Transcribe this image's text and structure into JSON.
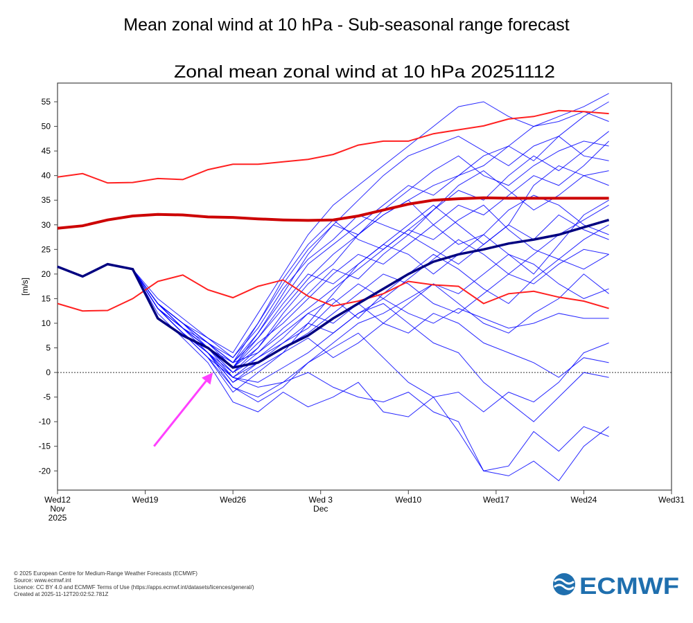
{
  "page_title": "Mean zonal wind at 10 hPa - Sub-seasonal range forecast",
  "footer": [
    "© 2025 European Centre for Medium-Range Weather Forecasts (ECMWF)",
    "Source: www.ecmwf.int",
    "Licence: CC BY 4.0 and ECMWF Terms of Use (https://apps.ecmwf.int/datasets/licences/general/)",
    "Created at 2025-11-12T20:02:52.781Z"
  ],
  "logo_text": "ECMWF",
  "colors": {
    "members": "#0000ff",
    "ensemble_mean": "#000080",
    "climate_bounds": "#ff2020",
    "climate_mean": "#cc0000",
    "arrow": "#ff40ff",
    "logo": "#1f6fae"
  },
  "chart_data": {
    "type": "line",
    "title": "Zonal mean zonal wind at 10 hPa 20251112",
    "ylabel": "[m/s]",
    "xlabel": "",
    "x_unit": "days from Wed 12 Nov 2025",
    "xlim": [
      0,
      49
    ],
    "ylim": [
      -23.9,
      58.8
    ],
    "yticks": [
      -20,
      -15,
      -10,
      -5,
      0,
      5,
      10,
      15,
      20,
      25,
      30,
      35,
      40,
      45,
      50,
      55
    ],
    "xticks": [
      {
        "day": 0,
        "label": [
          "Wed12",
          "Nov",
          "2025"
        ]
      },
      {
        "day": 7,
        "label": [
          "Wed19"
        ]
      },
      {
        "day": 14,
        "label": [
          "Wed26"
        ]
      },
      {
        "day": 21,
        "label": [
          "Wed 3",
          "Dec"
        ]
      },
      {
        "day": 28,
        "label": [
          "Wed10"
        ]
      },
      {
        "day": 35,
        "label": [
          "Wed17"
        ]
      },
      {
        "day": 42,
        "label": [
          "Wed24"
        ]
      },
      {
        "day": 49,
        "label": [
          "Wed31"
        ]
      }
    ],
    "zero_line": "dotted",
    "grid": false,
    "x": [
      0,
      2,
      4,
      6,
      8,
      10,
      12,
      14,
      16,
      18,
      20,
      22,
      24,
      26,
      28,
      30,
      32,
      34,
      36,
      38,
      40,
      42,
      44
    ],
    "climate_upper": [
      39.7,
      40.4,
      38.5,
      38.6,
      39.4,
      39.2,
      41.2,
      42.3,
      42.3,
      42.8,
      43.3,
      44.3,
      46.2,
      47.0,
      47.0,
      48.5,
      49.3,
      50.1,
      51.5,
      52.0,
      53.2,
      53.0,
      52.6
    ],
    "climate_mean": [
      29.3,
      29.8,
      31.0,
      31.8,
      32.1,
      32.0,
      31.6,
      31.5,
      31.2,
      31.0,
      30.9,
      31.0,
      31.8,
      33.0,
      34.2,
      35.0,
      35.3,
      35.5,
      35.4,
      35.4,
      35.4,
      35.4,
      35.4
    ],
    "climate_lower": [
      14.0,
      12.5,
      12.6,
      15.0,
      18.5,
      19.8,
      16.8,
      15.2,
      17.5,
      18.8,
      15.5,
      13.5,
      14.5,
      16.0,
      18.5,
      17.8,
      17.5,
      14.0,
      16.0,
      16.5,
      15.3,
      14.5,
      13.0
    ],
    "ensemble_mean": [
      21.5,
      19.5,
      22.0,
      21.0,
      11.0,
      7.5,
      5.0,
      1.0,
      2.0,
      5.0,
      7.5,
      11.0,
      14.0,
      17.0,
      20.0,
      22.5,
      24.0,
      25.0,
      26.2,
      27.0,
      28.0,
      29.5,
      31.0
    ],
    "members": [
      [
        21.5,
        19.5,
        22,
        21,
        14,
        9,
        5,
        1,
        5,
        12,
        18,
        22,
        28,
        32,
        35,
        38,
        40,
        42,
        46,
        50,
        52,
        54,
        56.7
      ],
      [
        21.5,
        19.5,
        22,
        21,
        13,
        8,
        3,
        -3,
        -5,
        -2,
        2,
        6,
        10,
        12,
        15,
        18,
        14,
        10,
        8,
        12,
        15,
        20,
        16
      ],
      [
        21.5,
        19.5,
        22,
        21,
        12,
        7,
        2,
        -6,
        -8,
        -4,
        -7,
        -5,
        -2,
        -8,
        -9,
        -5,
        -12,
        -20,
        -21,
        -18,
        -22,
        -15,
        -11
      ],
      [
        21.5,
        19.5,
        22,
        21,
        14,
        10,
        6,
        2,
        8,
        15,
        22,
        26,
        30,
        34,
        38,
        36,
        40,
        44,
        46,
        43,
        48,
        52,
        55
      ],
      [
        21.5,
        19.5,
        22,
        21,
        13,
        8,
        4,
        0,
        3,
        6,
        10,
        8,
        12,
        14,
        10,
        6,
        4,
        -2,
        -6,
        -10,
        -5,
        0,
        -1
      ],
      [
        21.5,
        19.5,
        22,
        21,
        15,
        11,
        7,
        3,
        10,
        18,
        25,
        30,
        28,
        32,
        35,
        30,
        26,
        28,
        33,
        36,
        34,
        30,
        28
      ],
      [
        21.5,
        19.5,
        22,
        21,
        13,
        9,
        5,
        -1,
        -3,
        -2,
        0,
        -3,
        -5,
        -6,
        -4,
        -8,
        -10,
        -20,
        -19,
        -12,
        -16,
        -11,
        -13
      ],
      [
        21.5,
        19.5,
        22,
        21,
        14,
        9,
        6,
        1,
        6,
        10,
        15,
        20,
        24,
        22,
        26,
        30,
        34,
        32,
        36,
        40,
        38,
        42,
        47
      ],
      [
        21.5,
        19.5,
        22,
        21,
        13,
        8,
        4,
        -2,
        2,
        5,
        8,
        12,
        16,
        20,
        18,
        14,
        12,
        16,
        20,
        18,
        22,
        25,
        24
      ],
      [
        21.5,
        19.5,
        22,
        21,
        14,
        10,
        7,
        4,
        12,
        20,
        28,
        34,
        38,
        42,
        46,
        50,
        54,
        55,
        52,
        50,
        51,
        53,
        51
      ],
      [
        21.5,
        19.5,
        22,
        21,
        14,
        9,
        5,
        0,
        4,
        8,
        12,
        10,
        14,
        10,
        8,
        12,
        10,
        6,
        4,
        2,
        -1,
        3,
        2
      ],
      [
        21.5,
        19.5,
        22,
        21,
        13,
        8,
        3,
        -4,
        0,
        4,
        10,
        16,
        22,
        26,
        24,
        20,
        24,
        28,
        24,
        20,
        26,
        32,
        35
      ],
      [
        21.5,
        19.5,
        22,
        21,
        14,
        10,
        6,
        2,
        7,
        14,
        20,
        18,
        22,
        26,
        30,
        34,
        30,
        26,
        30,
        38,
        42,
        40,
        38
      ],
      [
        21.5,
        19.5,
        22,
        21,
        13,
        8,
        4,
        -1,
        -2,
        1,
        4,
        8,
        12,
        15,
        12,
        10,
        13,
        11,
        9,
        10,
        12,
        11,
        11
      ],
      [
        21.5,
        19.5,
        22,
        21,
        14,
        10,
        5,
        1,
        8,
        16,
        24,
        30,
        35,
        40,
        44,
        46,
        48,
        45,
        42,
        46,
        48,
        44,
        43
      ],
      [
        21.5,
        19.5,
        22,
        21,
        13,
        9,
        4,
        -3,
        -6,
        -3,
        2,
        5,
        8,
        3,
        -2,
        -5,
        -4,
        -8,
        -4,
        -6,
        -2,
        4,
        6
      ],
      [
        21.5,
        19.5,
        22,
        21,
        14,
        10,
        6,
        3,
        9,
        17,
        23,
        27,
        32,
        30,
        28,
        33,
        37,
        35,
        40,
        44,
        41,
        45,
        49
      ],
      [
        21.5,
        19.5,
        22,
        21,
        13,
        9,
        5,
        0,
        5,
        11,
        16,
        21,
        19,
        24,
        28,
        25,
        22,
        26,
        30,
        27,
        32,
        29,
        27
      ],
      [
        21.5,
        19.5,
        22,
        21,
        14,
        9,
        5,
        2,
        4,
        9,
        13,
        17,
        21,
        25,
        29,
        27,
        31,
        34,
        29,
        25,
        23,
        27,
        30
      ],
      [
        21.5,
        19.5,
        22,
        21,
        13,
        8,
        4,
        -2,
        1,
        4,
        7,
        3,
        6,
        10,
        14,
        18,
        16,
        20,
        24,
        22,
        18,
        15,
        17
      ],
      [
        21.5,
        19.5,
        22,
        21,
        14,
        10,
        6,
        2,
        10,
        19,
        26,
        31,
        27,
        25,
        29,
        33,
        38,
        41,
        37,
        33,
        36,
        40,
        41
      ],
      [
        21.5,
        19.5,
        22,
        21,
        13,
        8,
        3,
        -1,
        3,
        7,
        12,
        15,
        11,
        16,
        20,
        24,
        21,
        17,
        14,
        19,
        23,
        21,
        24
      ],
      [
        21.5,
        19.5,
        22,
        21,
        14,
        9,
        5,
        1,
        7,
        13,
        19,
        24,
        28,
        33,
        37,
        41,
        44,
        40,
        38,
        42,
        45,
        47,
        46
      ],
      [
        21.5,
        19.5,
        22,
        21,
        13,
        8,
        4,
        -1,
        2,
        6,
        9,
        14,
        18,
        15,
        19,
        23,
        27,
        24,
        20,
        24,
        28,
        31,
        34
      ]
    ],
    "annotation_arrow": {
      "from": [
        7.7,
        -15
      ],
      "to": [
        12.4,
        0
      ]
    }
  }
}
